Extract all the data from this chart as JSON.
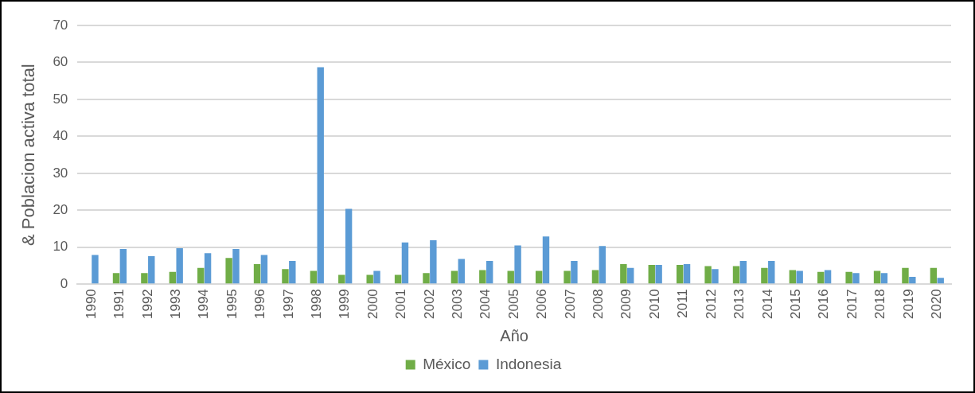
{
  "chart_data": {
    "type": "bar",
    "xlabel": "Año",
    "ylabel": "& Poblacion activa total",
    "categories": [
      "1990",
      "1991",
      "1992",
      "1993",
      "1994",
      "1995",
      "1996",
      "1997",
      "1998",
      "1999",
      "2000",
      "2001",
      "2002",
      "2003",
      "2004",
      "2005",
      "2006",
      "2007",
      "2008",
      "2009",
      "2010",
      "2011",
      "2012",
      "2013",
      "2014",
      "2015",
      "2016",
      "2017",
      "2018",
      "2019",
      "2020"
    ],
    "series": [
      {
        "name": "México",
        "color": "#70ad47",
        "values": [
          null,
          3.0,
          3.0,
          3.3,
          4.4,
          7.1,
          5.4,
          4.1,
          3.6,
          2.5,
          2.5,
          2.5,
          3.0,
          3.6,
          3.8,
          3.6,
          3.6,
          3.6,
          3.8,
          5.4,
          5.2,
          5.2,
          4.9,
          4.9,
          4.4,
          3.8,
          3.3,
          3.3,
          3.6,
          4.4,
          4.4
        ]
      },
      {
        "name": "Indonesia",
        "color": "#5b9bd5",
        "values": [
          7.9,
          9.5,
          7.6,
          9.7,
          8.4,
          9.5,
          7.9,
          6.3,
          58.7,
          20.4,
          3.6,
          11.3,
          11.9,
          6.8,
          6.3,
          10.5,
          12.9,
          6.3,
          10.3,
          4.4,
          5.2,
          5.4,
          4.1,
          6.3,
          6.3,
          3.6,
          3.8,
          3.0,
          3.0,
          2.0,
          1.7
        ]
      }
    ],
    "ylim": [
      0,
      70
    ],
    "yticks": [
      0,
      10,
      20,
      30,
      40,
      50,
      60,
      70
    ],
    "grid": "y",
    "legend": "bottom"
  }
}
